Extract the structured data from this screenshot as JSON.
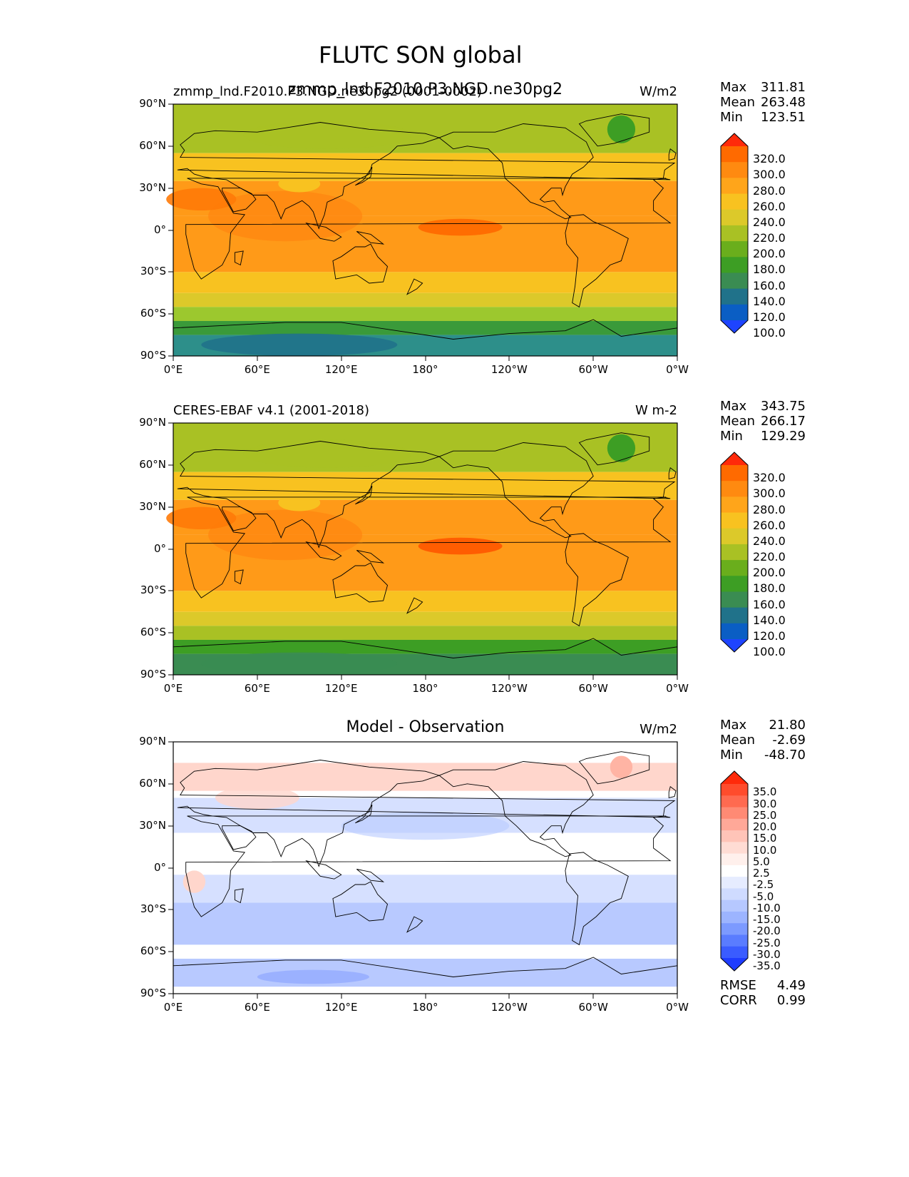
{
  "figure": {
    "title": "FLUTC SON global"
  },
  "panels": [
    {
      "left_title": "zmmp_lnd.F2010.P3.NGD.ne30pg2 (0001-0002)",
      "center_title": "zmmp_lnd.F2010.P3.NGD.ne30pg2",
      "units": "W/m2",
      "stats": {
        "max_label": "Max",
        "max": "311.81",
        "mean_label": "Mean",
        "mean": "263.48",
        "min_label": "Min",
        "min": "123.51"
      },
      "colorbar": {
        "levels": [
          "320.0",
          "300.0",
          "280.0",
          "260.0",
          "240.0",
          "220.0",
          "200.0",
          "180.0",
          "160.0",
          "140.0",
          "120.0",
          "100.0"
        ],
        "colors": [
          "#ff2a0a",
          "#ff6a00",
          "#ff8a10",
          "#ffa51a",
          "#f8c220",
          "#dcc92a",
          "#a9c124",
          "#6aae1c",
          "#3d9e24",
          "#3a8c52",
          "#20728a",
          "#0a5ec4",
          "#1e44ff"
        ]
      },
      "map_colors": {
        "pole_s": "#2d8f8a",
        "south_ocean": "#3a9a3a",
        "s_mid": "#9cc82e",
        "s_sub": "#dcc92a",
        "tropics": "#f8c220",
        "deep_trop": "#ff9a18",
        "itcz": "#ff6a00",
        "north_mid": "#f8c220",
        "north_high": "#a9c124",
        "greenland": "#3d9e24"
      }
    },
    {
      "left_title": "CERES-EBAF v4.1 (2001-2018)",
      "units": "W m-2",
      "stats": {
        "max_label": "Max",
        "max": "343.75",
        "mean_label": "Mean",
        "mean": "266.17",
        "min_label": "Min",
        "min": "129.29"
      },
      "colorbar": {
        "levels": [
          "320.0",
          "300.0",
          "280.0",
          "260.0",
          "240.0",
          "220.0",
          "200.0",
          "180.0",
          "160.0",
          "140.0",
          "120.0",
          "100.0"
        ],
        "colors": [
          "#ff2a0a",
          "#ff6a00",
          "#ff8a10",
          "#ffa51a",
          "#f8c220",
          "#dcc92a",
          "#a9c124",
          "#6aae1c",
          "#3d9e24",
          "#3a8c52",
          "#20728a",
          "#0a5ec4",
          "#1e44ff"
        ]
      },
      "map_colors": {
        "pole_s": "#3a8c52",
        "south_ocean": "#3d9e24",
        "s_mid": "#a9c124",
        "s_sub": "#dcc92a",
        "tropics": "#f8c220",
        "deep_trop": "#ff9a18",
        "itcz": "#ff5a00",
        "north_mid": "#f8c220",
        "north_high": "#a9c124",
        "greenland": "#3d9e24"
      }
    },
    {
      "center_title": "Model - Observation",
      "units": "W/m2",
      "stats": {
        "max_label": "Max",
        "max": "21.80",
        "mean_label": "Mean",
        "mean": "-2.69",
        "min_label": "Min",
        "min": "-48.70"
      },
      "colorbar": {
        "levels": [
          "35.0",
          "30.0",
          "25.0",
          "20.0",
          "15.0",
          "10.0",
          "5.0",
          "2.5",
          "-2.5",
          "-5.0",
          "-10.0",
          "-15.0",
          "-20.0",
          "-25.0",
          "-30.0",
          "-35.0"
        ],
        "colors": [
          "#ff2a0a",
          "#ff4c2c",
          "#ff6a50",
          "#ff8a74",
          "#ffa898",
          "#ffc4b8",
          "#ffdcd4",
          "#fff0ec",
          "#ffffff",
          "#e6ecff",
          "#cfdbff",
          "#b6c8ff",
          "#9cb4ff",
          "#7c9aff",
          "#5a7cff",
          "#3a5cff",
          "#1e3cff"
        ]
      },
      "map_colors": {
        "base": "#ffffff",
        "blue_light": "#d6e0ff",
        "blue_mid": "#b8c9ff",
        "blue_deep": "#93abff",
        "red_light": "#ffd6cc",
        "red_mid": "#ffb4a4"
      },
      "extra_stats": {
        "rmse_label": "RMSE",
        "rmse": "4.49",
        "corr_label": "CORR",
        "corr": "0.99"
      }
    }
  ],
  "axes": {
    "lat_ticks": [
      "90°N",
      "60°N",
      "30°N",
      "0°",
      "30°S",
      "60°S",
      "90°S"
    ],
    "lon_ticks": [
      "0°E",
      "60°E",
      "120°E",
      "180°",
      "120°W",
      "60°W",
      "0°W"
    ]
  }
}
